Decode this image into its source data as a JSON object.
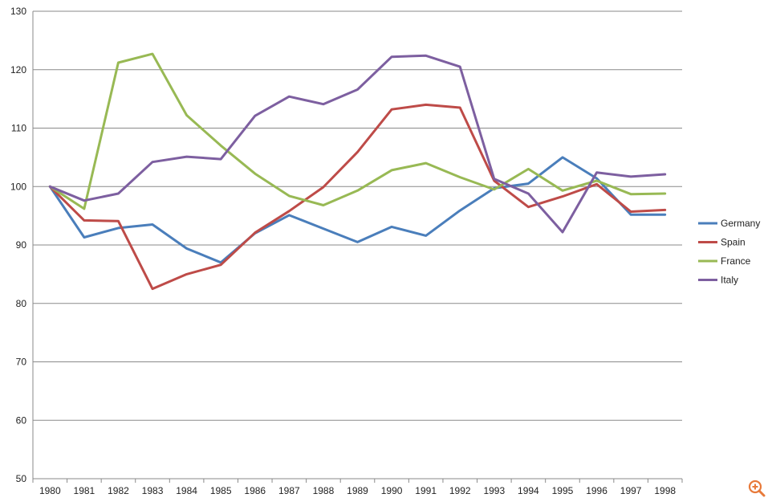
{
  "chart_data": {
    "type": "line",
    "title": "",
    "xlabel": "",
    "ylabel": "",
    "categories": [
      "1980",
      "1981",
      "1982",
      "1983",
      "1984",
      "1985",
      "1986",
      "1987",
      "1988",
      "1989",
      "1990",
      "1991",
      "1992",
      "1993",
      "1994",
      "1995",
      "1996",
      "1997",
      "1998"
    ],
    "ylim": [
      50,
      130
    ],
    "yticks": [
      50,
      60,
      70,
      80,
      90,
      100,
      110,
      120,
      130
    ],
    "grid": true,
    "legend_position": "right",
    "series": [
      {
        "name": "Germany",
        "color": "#4a7ebb",
        "values": [
          100,
          91.3,
          92.9,
          93.5,
          89.4,
          87.0,
          92.0,
          95.1,
          92.8,
          90.5,
          93.1,
          91.6,
          95.9,
          99.7,
          100.5,
          105.0,
          101.4,
          95.2,
          95.2
        ]
      },
      {
        "name": "Spain",
        "color": "#be4b48",
        "values": [
          100,
          94.2,
          94.1,
          82.5,
          85.0,
          86.6,
          92.1,
          95.8,
          99.9,
          105.9,
          113.2,
          114.0,
          113.5,
          101.0,
          96.5,
          98.3,
          100.4,
          95.7,
          96.0
        ]
      },
      {
        "name": "France",
        "color": "#98b954",
        "values": [
          100,
          96.2,
          121.2,
          122.7,
          112.2,
          107.0,
          102.2,
          98.4,
          96.8,
          99.3,
          102.8,
          104.0,
          101.6,
          99.5,
          103.0,
          99.3,
          101.0,
          98.7,
          98.8
        ]
      },
      {
        "name": "Italy",
        "color": "#7d5fa0",
        "values": [
          100,
          97.6,
          98.8,
          104.2,
          105.1,
          104.7,
          112.1,
          115.4,
          114.1,
          116.6,
          122.2,
          122.4,
          120.5,
          101.3,
          98.8,
          92.2,
          102.4,
          101.7,
          102.1
        ]
      }
    ]
  },
  "ui": {
    "zoom_icon": "zoom-in-icon",
    "zoom_color": "#e87a3a"
  }
}
